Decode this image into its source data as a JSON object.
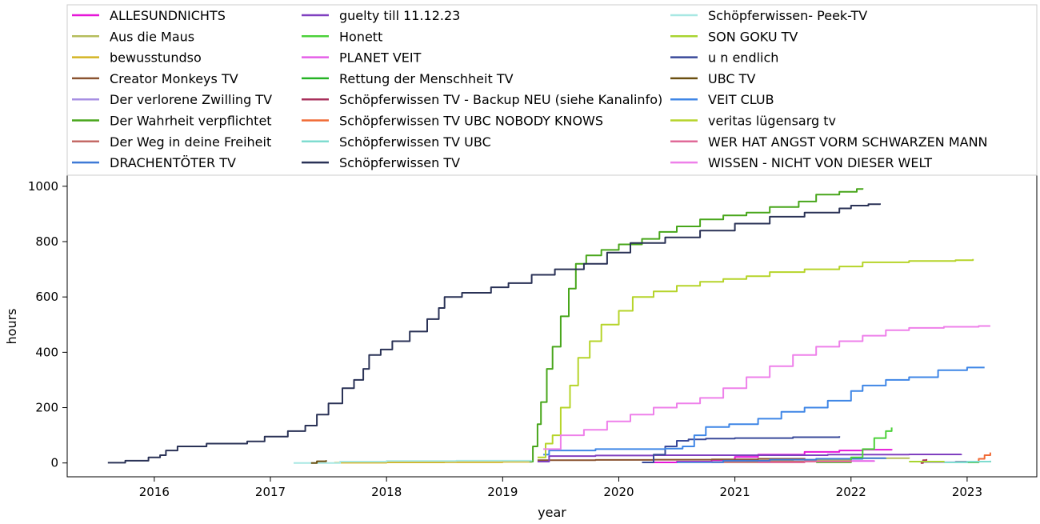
{
  "chart_data": {
    "type": "line",
    "title": "",
    "xlabel": "year",
    "ylabel": "hours",
    "xlim": [
      2015.25,
      2023.6
    ],
    "ylim": [
      -50,
      1040
    ],
    "xticks": [
      2016,
      2017,
      2018,
      2019,
      2020,
      2021,
      2022,
      2023
    ],
    "yticks": [
      0,
      200,
      400,
      600,
      800,
      1000
    ],
    "grid": false,
    "legend_position": "top",
    "legend_columns": 3,
    "series": [
      {
        "name": "ALLESUNDNICHTS",
        "color": "#e617d8",
        "points": [
          [
            2020.2,
            2
          ],
          [
            2020.5,
            5
          ],
          [
            2020.8,
            10
          ],
          [
            2021.0,
            22
          ],
          [
            2021.2,
            30
          ],
          [
            2021.6,
            40
          ],
          [
            2021.9,
            45
          ],
          [
            2022.1,
            48
          ],
          [
            2022.35,
            50
          ]
        ]
      },
      {
        "name": "Aus die Maus",
        "color": "#b5bd5c",
        "points": [
          [
            2021.1,
            8
          ],
          [
            2021.5,
            12
          ],
          [
            2022.0,
            17
          ],
          [
            2022.5,
            20
          ]
        ]
      },
      {
        "name": "bewusstundso",
        "color": "#d4b424",
        "points": [
          [
            2017.55,
            1
          ],
          [
            2018.0,
            2
          ],
          [
            2018.5,
            3
          ],
          [
            2019.0,
            4
          ],
          [
            2019.25,
            5
          ]
        ]
      },
      {
        "name": "Creator Monkeys TV",
        "color": "#8a5330",
        "points": [
          [
            2019.3,
            10
          ],
          [
            2019.8,
            11
          ],
          [
            2020.3,
            12
          ],
          [
            2020.8,
            13
          ],
          [
            2021.2,
            15
          ],
          [
            2021.6,
            18
          ]
        ]
      },
      {
        "name": "Der verlorene Zwilling TV",
        "color": "#a78fe3",
        "points": [
          [
            2022.6,
            3
          ],
          [
            2022.9,
            5
          ],
          [
            2023.2,
            7
          ]
        ]
      },
      {
        "name": "Der Wahrheit verpflichtet",
        "color": "#48a61b",
        "points": [
          [
            2019.23,
            5
          ],
          [
            2019.26,
            60
          ],
          [
            2019.3,
            140
          ],
          [
            2019.33,
            220
          ],
          [
            2019.38,
            340
          ],
          [
            2019.43,
            420
          ],
          [
            2019.5,
            530
          ],
          [
            2019.57,
            630
          ],
          [
            2019.63,
            720
          ],
          [
            2019.72,
            750
          ],
          [
            2019.85,
            770
          ],
          [
            2020.0,
            790
          ],
          [
            2020.2,
            810
          ],
          [
            2020.35,
            835
          ],
          [
            2020.5,
            855
          ],
          [
            2020.7,
            880
          ],
          [
            2020.9,
            895
          ],
          [
            2021.1,
            905
          ],
          [
            2021.3,
            925
          ],
          [
            2021.55,
            945
          ],
          [
            2021.7,
            970
          ],
          [
            2021.9,
            980
          ],
          [
            2022.05,
            990
          ],
          [
            2022.1,
            993
          ]
        ]
      },
      {
        "name": "Der Weg in deine Freiheit",
        "color": "#c46a66",
        "points": [
          [
            2020.8,
            3
          ],
          [
            2021.2,
            5
          ],
          [
            2021.6,
            6
          ],
          [
            2022.0,
            8
          ]
        ]
      },
      {
        "name": "DRACHENTÖTER TV",
        "color": "#3f7ad6",
        "points": [
          [
            2020.5,
            3
          ],
          [
            2020.9,
            8
          ],
          [
            2021.3,
            12
          ],
          [
            2021.7,
            15
          ],
          [
            2022.1,
            17
          ],
          [
            2022.3,
            18
          ]
        ]
      },
      {
        "name": "guelty till 11.12.23",
        "color": "#8040c0",
        "points": [
          [
            2019.3,
            5
          ],
          [
            2019.4,
            25
          ],
          [
            2019.8,
            27
          ],
          [
            2020.3,
            28
          ],
          [
            2021.0,
            28
          ],
          [
            2021.8,
            30
          ],
          [
            2022.5,
            31
          ],
          [
            2022.95,
            32
          ]
        ]
      },
      {
        "name": "Honett",
        "color": "#4cd13a",
        "points": [
          [
            2021.7,
            2
          ],
          [
            2022.0,
            20
          ],
          [
            2022.1,
            50
          ],
          [
            2022.2,
            90
          ],
          [
            2022.3,
            115
          ],
          [
            2022.35,
            128
          ]
        ]
      },
      {
        "name": "PLANET VEIT",
        "color": "#e55fe8",
        "points": [
          [
            2021.8,
            5
          ],
          [
            2022.0,
            7
          ],
          [
            2022.2,
            9
          ]
        ]
      },
      {
        "name": "Rettung der Menschheit TV",
        "color": "#25b324",
        "points": [
          [
            2022.9,
            3
          ],
          [
            2023.1,
            5
          ],
          [
            2023.2,
            6
          ]
        ]
      },
      {
        "name": "Schöpferwissen TV - Backup NEU (siehe Kanalinfo)",
        "color": "#a8305c",
        "points": [
          [
            2022.6,
            0
          ],
          [
            2022.62,
            10
          ],
          [
            2022.65,
            14
          ]
        ]
      },
      {
        "name": "Schöpferwissen TV UBC NOBODY KNOWS",
        "color": "#f06a35",
        "points": [
          [
            2023.0,
            5
          ],
          [
            2023.1,
            15
          ],
          [
            2023.15,
            28
          ],
          [
            2023.2,
            38
          ]
        ]
      },
      {
        "name": "Schöpferwissen TV UBC",
        "color": "#7fdcd0",
        "points": [
          [
            2022.8,
            2
          ],
          [
            2023.0,
            5
          ],
          [
            2023.2,
            8
          ]
        ]
      },
      {
        "name": "Schöpferwissen TV",
        "color": "#2a3256",
        "points": [
          [
            2015.6,
            1
          ],
          [
            2015.75,
            8
          ],
          [
            2015.95,
            20
          ],
          [
            2016.05,
            28
          ],
          [
            2016.1,
            45
          ],
          [
            2016.2,
            60
          ],
          [
            2016.45,
            70
          ],
          [
            2016.8,
            78
          ],
          [
            2016.95,
            95
          ],
          [
            2017.15,
            115
          ],
          [
            2017.3,
            135
          ],
          [
            2017.4,
            175
          ],
          [
            2017.5,
            215
          ],
          [
            2017.62,
            270
          ],
          [
            2017.72,
            300
          ],
          [
            2017.8,
            340
          ],
          [
            2017.85,
            390
          ],
          [
            2017.95,
            410
          ],
          [
            2018.05,
            440
          ],
          [
            2018.2,
            475
          ],
          [
            2018.35,
            520
          ],
          [
            2018.45,
            560
          ],
          [
            2018.5,
            600
          ],
          [
            2018.65,
            615
          ],
          [
            2018.9,
            635
          ],
          [
            2019.05,
            650
          ],
          [
            2019.25,
            680
          ],
          [
            2019.45,
            700
          ],
          [
            2019.7,
            720
          ],
          [
            2019.9,
            760
          ],
          [
            2020.1,
            795
          ],
          [
            2020.4,
            815
          ],
          [
            2020.7,
            840
          ],
          [
            2021.0,
            865
          ],
          [
            2021.3,
            890
          ],
          [
            2021.6,
            905
          ],
          [
            2021.9,
            920
          ],
          [
            2022.0,
            930
          ],
          [
            2022.15,
            935
          ],
          [
            2022.25,
            938
          ]
        ]
      },
      {
        "name": "Schöpferwissen- Peek-TV",
        "color": "#a8e8e3",
        "points": [
          [
            2017.2,
            0
          ],
          [
            2017.6,
            5
          ],
          [
            2018.0,
            7
          ],
          [
            2018.6,
            8
          ],
          [
            2019.2,
            8
          ],
          [
            2019.25,
            9
          ]
        ]
      },
      {
        "name": "SON GOKU TV",
        "color": "#a8d430",
        "points": [
          [
            2022.5,
            5
          ],
          [
            2022.8,
            7
          ]
        ]
      },
      {
        "name": "u n endlich",
        "color": "#3a4a9a",
        "points": [
          [
            2020.2,
            2
          ],
          [
            2020.3,
            30
          ],
          [
            2020.4,
            60
          ],
          [
            2020.5,
            80
          ],
          [
            2020.6,
            85
          ],
          [
            2020.75,
            88
          ],
          [
            2021.0,
            90
          ],
          [
            2021.5,
            93
          ],
          [
            2021.9,
            97
          ]
        ]
      },
      {
        "name": "UBC TV",
        "color": "#6b4f10",
        "points": [
          [
            2017.35,
            0
          ],
          [
            2017.4,
            6
          ],
          [
            2017.48,
            10
          ]
        ]
      },
      {
        "name": "VEIT CLUB",
        "color": "#3f86e6",
        "points": [
          [
            2019.35,
            30
          ],
          [
            2019.4,
            45
          ],
          [
            2019.8,
            50
          ],
          [
            2020.4,
            52
          ],
          [
            2020.55,
            60
          ],
          [
            2020.65,
            100
          ],
          [
            2020.75,
            130
          ],
          [
            2020.95,
            140
          ],
          [
            2021.2,
            160
          ],
          [
            2021.4,
            185
          ],
          [
            2021.6,
            200
          ],
          [
            2021.8,
            225
          ],
          [
            2022.0,
            260
          ],
          [
            2022.1,
            280
          ],
          [
            2022.3,
            300
          ],
          [
            2022.5,
            310
          ],
          [
            2022.75,
            335
          ],
          [
            2023.0,
            345
          ],
          [
            2023.15,
            345
          ]
        ]
      },
      {
        "name": "veritas lügensarg tv",
        "color": "#b6d42a",
        "points": [
          [
            2019.3,
            20
          ],
          [
            2019.37,
            70
          ],
          [
            2019.43,
            100
          ],
          [
            2019.5,
            200
          ],
          [
            2019.58,
            280
          ],
          [
            2019.65,
            380
          ],
          [
            2019.75,
            440
          ],
          [
            2019.85,
            500
          ],
          [
            2020.0,
            550
          ],
          [
            2020.12,
            600
          ],
          [
            2020.3,
            620
          ],
          [
            2020.5,
            640
          ],
          [
            2020.7,
            655
          ],
          [
            2020.9,
            665
          ],
          [
            2021.1,
            675
          ],
          [
            2021.3,
            690
          ],
          [
            2021.6,
            700
          ],
          [
            2021.9,
            710
          ],
          [
            2022.1,
            725
          ],
          [
            2022.5,
            730
          ],
          [
            2022.9,
            733
          ],
          [
            2023.05,
            737
          ]
        ]
      },
      {
        "name": "WER HAT ANGST VORM SCHWARZEN MANN",
        "color": "#e06a98",
        "points": [
          [
            2021.2,
            2
          ],
          [
            2021.6,
            5
          ],
          [
            2022.0,
            8
          ]
        ]
      },
      {
        "name": "WISSEN - NICHT VON DIESER WELT",
        "color": "#ee80ea",
        "points": [
          [
            2019.35,
            50
          ],
          [
            2019.5,
            100
          ],
          [
            2019.7,
            120
          ],
          [
            2019.9,
            150
          ],
          [
            2020.1,
            175
          ],
          [
            2020.3,
            200
          ],
          [
            2020.5,
            215
          ],
          [
            2020.7,
            235
          ],
          [
            2020.9,
            270
          ],
          [
            2021.1,
            310
          ],
          [
            2021.3,
            350
          ],
          [
            2021.5,
            390
          ],
          [
            2021.7,
            420
          ],
          [
            2021.9,
            440
          ],
          [
            2022.1,
            460
          ],
          [
            2022.3,
            480
          ],
          [
            2022.5,
            488
          ],
          [
            2022.8,
            492
          ],
          [
            2023.1,
            495
          ],
          [
            2023.2,
            495
          ]
        ]
      }
    ]
  }
}
